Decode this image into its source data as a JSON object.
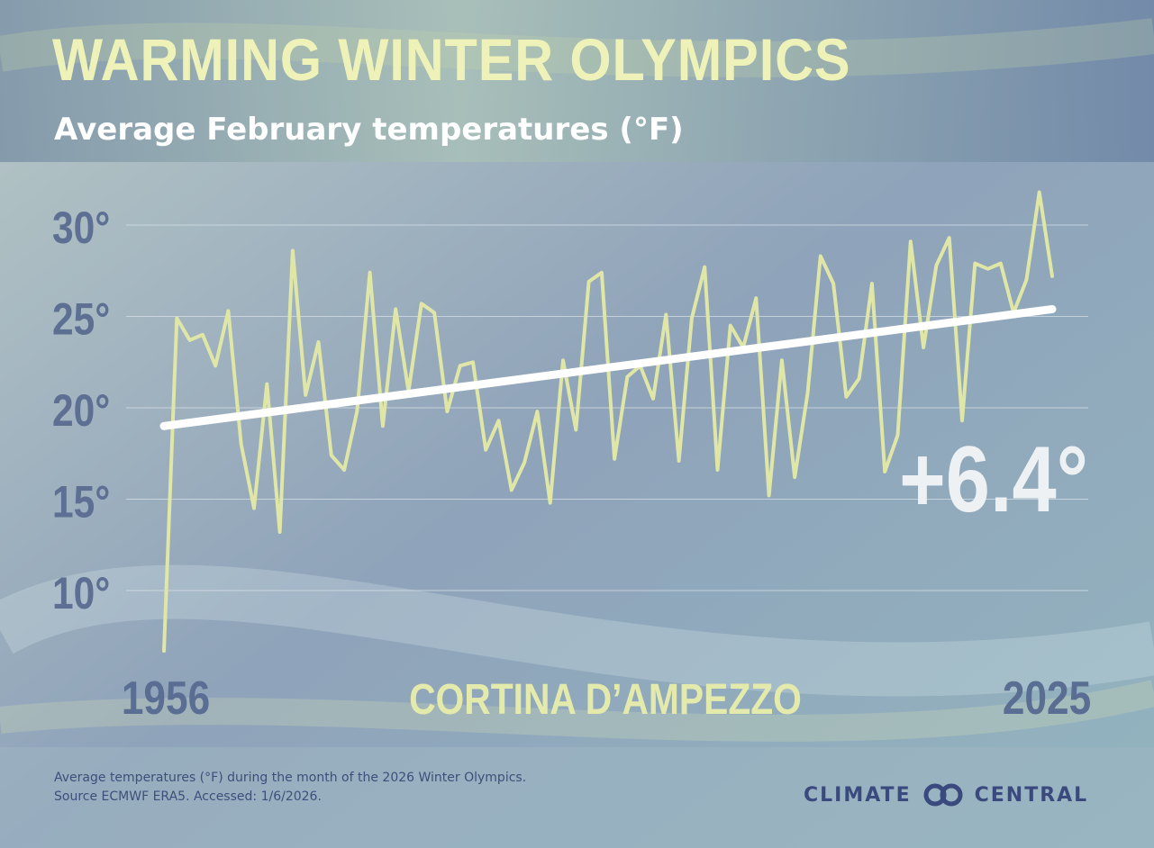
{
  "page": {
    "title": "WARMING WINTER OLYMPICS",
    "subtitle": "Average February temperatures (°F)",
    "footnote": [
      "Average temperatures (°F) during the month of the 2026 Winter Olympics.",
      "Source  ECMWF ERA5. Accessed: 1/6/2026."
    ],
    "logo": {
      "left": "CLIMATE",
      "right": "CENTRAL",
      "icon": "interlocking-rings-icon"
    }
  },
  "chart_data": {
    "type": "line",
    "title": "WARMING WINTER OLYMPICS",
    "subtitle": "Average February temperatures (°F)",
    "location_label": "CORTINA D’AMPEZZO",
    "x_start_label": "1956",
    "x_end_label": "2025",
    "xlim": [
      1956,
      2025
    ],
    "ylim": [
      6,
      32
    ],
    "y_ticks": [
      10,
      15,
      20,
      25,
      30
    ],
    "y_tick_labels": [
      "10°",
      "15°",
      "20°",
      "25°",
      "30°"
    ],
    "grid": true,
    "series": [
      {
        "color": "#dfe6a6",
        "x": [
          1956,
          1957,
          1958,
          1959,
          1960,
          1961,
          1962,
          1963,
          1964,
          1965,
          1966,
          1967,
          1968,
          1969,
          1970,
          1971,
          1972,
          1973,
          1974,
          1975,
          1976,
          1977,
          1978,
          1979,
          1980,
          1981,
          1982,
          1983,
          1984,
          1985,
          1986,
          1987,
          1988,
          1989,
          1990,
          1991,
          1992,
          1993,
          1994,
          1995,
          1996,
          1997,
          1998,
          1999,
          2000,
          2001,
          2002,
          2003,
          2004,
          2005,
          2006,
          2007,
          2008,
          2009,
          2010,
          2011,
          2012,
          2013,
          2014,
          2015,
          2016,
          2017,
          2018,
          2019,
          2020,
          2021,
          2022,
          2023,
          2024,
          2025
        ],
        "y": [
          6.7,
          24.9,
          23.7,
          24.0,
          22.3,
          25.3,
          18.0,
          14.5,
          21.3,
          13.2,
          28.6,
          20.7,
          23.6,
          17.4,
          16.6,
          19.8,
          27.4,
          19.0,
          25.4,
          20.9,
          25.7,
          25.2,
          19.8,
          22.3,
          22.5,
          17.7,
          19.3,
          15.5,
          17.0,
          19.8,
          14.8,
          22.6,
          18.8,
          26.9,
          27.4,
          17.2,
          21.7,
          22.3,
          20.5,
          25.1,
          17.1,
          24.9,
          27.7,
          16.6,
          24.5,
          23.3,
          26.0,
          15.2,
          22.6,
          16.2,
          20.8,
          28.3,
          26.8,
          20.6,
          21.6,
          26.8,
          16.5,
          18.5,
          29.1,
          23.3,
          27.8,
          29.3,
          19.3,
          27.9,
          27.6,
          27.9,
          25.2,
          27.0,
          31.8,
          27.2
        ]
      },
      {
        "color": "#ffffff",
        "x": [
          1956,
          2025
        ],
        "y": [
          19.0,
          25.4
        ]
      }
    ],
    "annotation": "+6.4°"
  }
}
